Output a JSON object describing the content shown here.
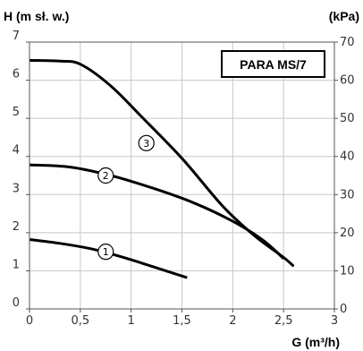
{
  "chart_data": {
    "type": "line",
    "title": "",
    "ylabel": "H (m sł. w.)",
    "y2label": "(kPa)",
    "xlabel": "G (m³/h)",
    "legend_box": "PARA MS/7",
    "xlim": [
      0,
      3
    ],
    "ylim": [
      0,
      7
    ],
    "y2lim": [
      0,
      70
    ],
    "xticks": [
      "0",
      "0,5",
      "1",
      "1,5",
      "2",
      "2,5",
      "3"
    ],
    "xtick_values": [
      0,
      0.5,
      1,
      1.5,
      2,
      2.5,
      3
    ],
    "yticks": [
      "0",
      "1",
      "2",
      "3",
      "4",
      "5",
      "6",
      "7"
    ],
    "ytick_values": [
      0,
      1,
      2,
      3,
      4,
      5,
      6,
      7
    ],
    "y2ticks": [
      "0",
      "10",
      "20",
      "30",
      "40",
      "50",
      "60",
      "70"
    ],
    "y2tick_values": [
      0,
      10,
      20,
      30,
      40,
      50,
      60,
      70
    ],
    "grid": true,
    "series": [
      {
        "label": "1",
        "label_at": [
          0.75,
          1.5
        ],
        "points": [
          [
            0,
            1.82
          ],
          [
            0.3,
            1.72
          ],
          [
            0.6,
            1.58
          ],
          [
            0.9,
            1.37
          ],
          [
            1.2,
            1.12
          ],
          [
            1.55,
            0.82
          ]
        ]
      },
      {
        "label": "2",
        "label_at": [
          0.75,
          3.5
        ],
        "points": [
          [
            0,
            3.78
          ],
          [
            0.4,
            3.72
          ],
          [
            0.8,
            3.5
          ],
          [
            1.2,
            3.18
          ],
          [
            1.6,
            2.8
          ],
          [
            2.0,
            2.3
          ],
          [
            2.3,
            1.8
          ],
          [
            2.5,
            1.32
          ]
        ]
      },
      {
        "label": "3",
        "label_at": [
          1.15,
          4.35
        ],
        "points": [
          [
            0,
            6.52
          ],
          [
            0.3,
            6.5
          ],
          [
            0.5,
            6.42
          ],
          [
            0.8,
            5.85
          ],
          [
            1.1,
            5.05
          ],
          [
            1.5,
            3.95
          ],
          [
            1.9,
            2.7
          ],
          [
            2.2,
            1.95
          ],
          [
            2.5,
            1.35
          ],
          [
            2.6,
            1.12
          ]
        ]
      }
    ]
  }
}
